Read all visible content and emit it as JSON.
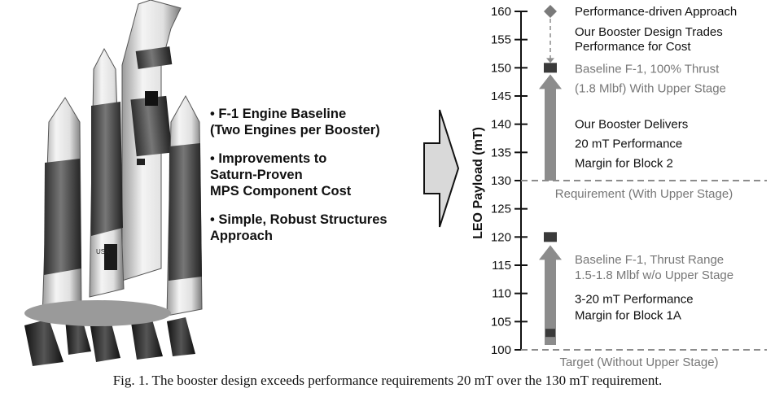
{
  "bullets": [
    "• F-1 Engine Baseline\n(Two Engines per Booster)",
    "• Improvements to\nSaturn-Proven\nMPS Component Cost",
    "• Simple, Robust Structures\nApproach"
  ],
  "rocket": {
    "booster_marking": "USA"
  },
  "chart": {
    "ylabel": "LEO Payload (mT)",
    "ylim": [
      100,
      160
    ],
    "ticks": [
      "100",
      "105",
      "110",
      "115",
      "120",
      "125",
      "130",
      "135",
      "140",
      "145",
      "150",
      "155",
      "160"
    ],
    "requirement_with_upper": {
      "value": 130,
      "label": "Requirement (With Upper Stage)"
    },
    "target_without_upper": {
      "value": 100,
      "label": "Target (Without Upper Stage)"
    },
    "performance_driven": {
      "value": 160,
      "label": "Performance-driven Approach"
    },
    "trades_note": [
      "Our Booster Design Trades",
      "Performance for Cost"
    ],
    "block2_arrow": {
      "from": 130,
      "to": 150
    },
    "baseline_with_upper": {
      "value": 150,
      "label": [
        "Baseline F-1, 100% Thrust",
        "(1.8 Mlbf) With Upper Stage"
      ]
    },
    "block2_margin": [
      "Our Booster Delivers",
      "20 mT Performance",
      "Margin for Block 2"
    ],
    "block1a_arrow": {
      "from": 103,
      "to": 120
    },
    "baseline_range": {
      "low": 103,
      "high": 120,
      "label": [
        "Baseline F-1, Thrust Range",
        "1.5-1.8 Mlbf w/o Upper Stage"
      ]
    },
    "block1a_margin": [
      "3-20 mT Performance",
      "Margin for Block 1A"
    ],
    "colors": {
      "arrow": "#8c8c8c",
      "marker": "#3a3a3a",
      "dashed": "#8c8c8c",
      "gray_text": "#777777",
      "dark_text": "#111111"
    }
  },
  "caption": "Fig. 1.  The booster design exceeds performance requirements 20 mT over the 130 mT requirement."
}
